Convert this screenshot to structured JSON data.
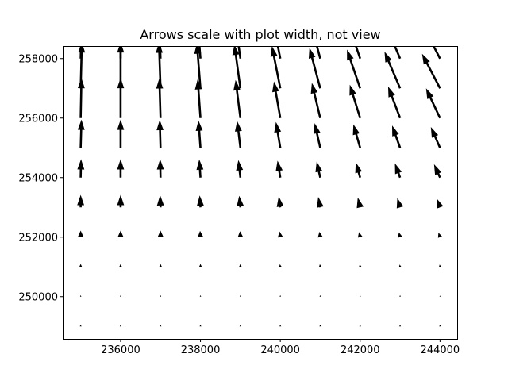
{
  "chart_data": {
    "type": "quiver",
    "title": "Arrows scale with plot width, not view",
    "xlabel": "",
    "ylabel": "",
    "xlim": [
      234570,
      244430
    ],
    "ylim": [
      248580,
      258420
    ],
    "grid": false,
    "x_ticks": [
      236000,
      238000,
      240000,
      242000,
      244000
    ],
    "x_tick_labels": [
      "236000",
      "238000",
      "240000",
      "242000",
      "244000"
    ],
    "y_ticks": [
      250000,
      252000,
      254000,
      256000,
      258000
    ],
    "y_tick_labels": [
      "250000",
      "252000",
      "254000",
      "256000",
      "258000"
    ],
    "arrow_color": "#000000",
    "grid_x": [
      235000,
      236000,
      237000,
      238000,
      239000,
      240000,
      241000,
      242000,
      243000,
      244000
    ],
    "grid_y": [
      249000,
      250000,
      251000,
      252000,
      253000,
      254000,
      255000,
      256000,
      257000,
      258000
    ],
    "vectors": [
      {
        "y": 249000,
        "u": [
          0.0,
          0.0,
          0.0,
          0.0,
          0.0,
          0.0,
          0.0,
          0.0,
          0.0,
          0.0
        ],
        "v": [
          0.02,
          0.02,
          0.02,
          0.02,
          0.02,
          0.02,
          0.02,
          0.02,
          0.02,
          0.02
        ]
      },
      {
        "y": 250000,
        "u": [
          0.0,
          0.0,
          0.0,
          0.0,
          0.0,
          0.0,
          0.0,
          0.0,
          0.0,
          0.0
        ],
        "v": [
          0.05,
          0.05,
          0.05,
          0.05,
          0.05,
          0.05,
          0.05,
          0.05,
          0.05,
          0.04
        ]
      },
      {
        "y": 251000,
        "u": [
          0.0,
          0.0,
          0.0,
          0.0,
          0.0,
          -0.01,
          -0.01,
          -0.01,
          -0.01,
          -0.01
        ],
        "v": [
          0.1,
          0.1,
          0.1,
          0.1,
          0.1,
          0.09,
          0.09,
          0.09,
          0.08,
          0.08
        ]
      },
      {
        "y": 252000,
        "u": [
          0.0,
          0.0,
          0.0,
          -0.01,
          -0.01,
          -0.02,
          -0.02,
          -0.03,
          -0.03,
          -0.04
        ],
        "v": [
          0.22,
          0.22,
          0.22,
          0.21,
          0.2,
          0.19,
          0.18,
          0.17,
          0.16,
          0.15
        ]
      },
      {
        "y": 253000,
        "u": [
          0.0,
          0.0,
          -0.01,
          -0.02,
          -0.03,
          -0.04,
          -0.05,
          -0.06,
          -0.07,
          -0.08
        ],
        "v": [
          0.42,
          0.42,
          0.41,
          0.4,
          0.39,
          0.37,
          0.35,
          0.33,
          0.31,
          0.29
        ]
      },
      {
        "y": 254000,
        "u": [
          0.01,
          0.0,
          -0.01,
          -0.03,
          -0.05,
          -0.07,
          -0.09,
          -0.11,
          -0.13,
          -0.15
        ],
        "v": [
          0.62,
          0.62,
          0.62,
          0.61,
          0.59,
          0.57,
          0.54,
          0.51,
          0.48,
          0.45
        ]
      },
      {
        "y": 255000,
        "u": [
          0.02,
          0.0,
          -0.02,
          -0.05,
          -0.08,
          -0.11,
          -0.14,
          -0.17,
          -0.2,
          -0.23
        ],
        "v": [
          0.95,
          0.95,
          0.94,
          0.92,
          0.9,
          0.87,
          0.83,
          0.79,
          0.75,
          0.7
        ]
      },
      {
        "y": 256000,
        "u": [
          0.02,
          0.0,
          -0.03,
          -0.07,
          -0.12,
          -0.16,
          -0.21,
          -0.26,
          -0.3,
          -0.35
        ],
        "v": [
          1.35,
          1.35,
          1.34,
          1.31,
          1.28,
          1.23,
          1.18,
          1.12,
          1.06,
          1.0
        ]
      },
      {
        "y": 257000,
        "u": [
          0.03,
          0.0,
          -0.04,
          -0.09,
          -0.15,
          -0.21,
          -0.27,
          -0.33,
          -0.39,
          -0.45
        ],
        "v": [
          1.55,
          1.55,
          1.54,
          1.51,
          1.47,
          1.42,
          1.36,
          1.3,
          1.23,
          1.16
        ]
      },
      {
        "y": 258000,
        "u": [
          0.03,
          0.0,
          -0.04,
          -0.09,
          -0.15,
          -0.21,
          -0.27,
          -0.33,
          -0.39,
          -0.45
        ],
        "v": [
          1.55,
          1.55,
          1.54,
          1.51,
          1.47,
          1.42,
          1.36,
          1.3,
          1.23,
          1.16
        ]
      }
    ],
    "arrow_scale_units_per_magnitude": 1000
  }
}
